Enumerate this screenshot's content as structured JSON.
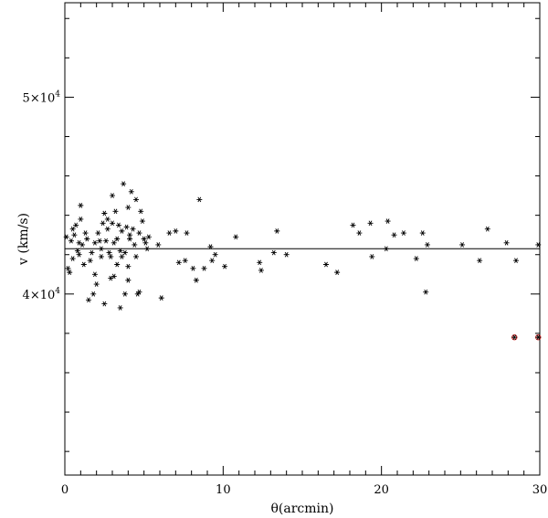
{
  "chart_data": {
    "type": "scatter",
    "xlabel": "θ(arcmin)",
    "ylabel": "v (km/s)",
    "xlim": [
      0,
      30
    ],
    "ylim": [
      30800,
      54800
    ],
    "x_ticks": [
      0,
      10,
      20,
      30
    ],
    "x_tick_labels": [
      "0",
      "10",
      "20",
      "30"
    ],
    "y_ticks": [
      40000,
      50000
    ],
    "y_tick_labels": [
      {
        "mant": "4×10",
        "exp": "4"
      },
      {
        "mant": "5×10",
        "exp": "4"
      }
    ],
    "reference_line": 42300,
    "grid": false,
    "marker_color": "#000000",
    "highlight_color": "#cc2222",
    "series": [
      {
        "marker": "star",
        "points": [
          [
            0.1,
            42900
          ],
          [
            0.2,
            41300
          ],
          [
            0.3,
            41100
          ],
          [
            0.4,
            42700
          ],
          [
            0.5,
            41800
          ],
          [
            0.5,
            43300
          ],
          [
            0.6,
            43000
          ],
          [
            0.7,
            43500
          ],
          [
            0.8,
            42200
          ],
          [
            0.9,
            42600
          ],
          [
            0.9,
            42000
          ],
          [
            1.0,
            44500
          ],
          [
            1.0,
            43800
          ],
          [
            1.1,
            42500
          ],
          [
            1.2,
            41500
          ],
          [
            1.3,
            43100
          ],
          [
            1.4,
            42800
          ],
          [
            1.5,
            39700
          ],
          [
            1.6,
            41700
          ],
          [
            1.7,
            42100
          ],
          [
            1.8,
            40000
          ],
          [
            1.9,
            42600
          ],
          [
            1.9,
            41000
          ],
          [
            2.0,
            40500
          ],
          [
            2.1,
            43100
          ],
          [
            2.2,
            42700
          ],
          [
            2.3,
            42300
          ],
          [
            2.3,
            41900
          ],
          [
            2.4,
            43600
          ],
          [
            2.5,
            44100
          ],
          [
            2.5,
            39500
          ],
          [
            2.6,
            42700
          ],
          [
            2.7,
            43800
          ],
          [
            2.7,
            43300
          ],
          [
            2.8,
            42100
          ],
          [
            2.9,
            40800
          ],
          [
            2.9,
            41900
          ],
          [
            3.0,
            45000
          ],
          [
            3.0,
            43600
          ],
          [
            3.1,
            42600
          ],
          [
            3.1,
            40900
          ],
          [
            3.2,
            44200
          ],
          [
            3.3,
            42800
          ],
          [
            3.3,
            41500
          ],
          [
            3.4,
            43500
          ],
          [
            3.5,
            42200
          ],
          [
            3.5,
            39300
          ],
          [
            3.6,
            41900
          ],
          [
            3.6,
            43200
          ],
          [
            3.7,
            45600
          ],
          [
            3.8,
            42100
          ],
          [
            3.8,
            40000
          ],
          [
            3.9,
            43400
          ],
          [
            4.0,
            44400
          ],
          [
            4.0,
            41400
          ],
          [
            4.0,
            40700
          ],
          [
            4.1,
            43000
          ],
          [
            4.1,
            42800
          ],
          [
            4.2,
            45200
          ],
          [
            4.3,
            43300
          ],
          [
            4.4,
            42500
          ],
          [
            4.5,
            44800
          ],
          [
            4.5,
            41900
          ],
          [
            4.6,
            40000
          ],
          [
            4.7,
            43100
          ],
          [
            4.7,
            40100
          ],
          [
            4.8,
            44200
          ],
          [
            4.9,
            43700
          ],
          [
            5.0,
            42800
          ],
          [
            5.1,
            42600
          ],
          [
            5.2,
            42300
          ],
          [
            5.3,
            42900
          ],
          [
            5.9,
            42500
          ],
          [
            6.1,
            39800
          ],
          [
            6.6,
            43100
          ],
          [
            7.0,
            43200
          ],
          [
            7.2,
            41600
          ],
          [
            7.6,
            41700
          ],
          [
            7.7,
            43100
          ],
          [
            8.1,
            41300
          ],
          [
            8.3,
            40700
          ],
          [
            8.5,
            44800
          ],
          [
            8.8,
            41300
          ],
          [
            9.2,
            42400
          ],
          [
            9.3,
            41700
          ],
          [
            9.5,
            42000
          ],
          [
            10.1,
            41400
          ],
          [
            10.8,
            42900
          ],
          [
            12.3,
            41600
          ],
          [
            12.4,
            41200
          ],
          [
            13.2,
            42100
          ],
          [
            13.4,
            43200
          ],
          [
            14.0,
            42000
          ],
          [
            16.5,
            41500
          ],
          [
            17.2,
            41100
          ],
          [
            18.2,
            43500
          ],
          [
            18.6,
            43100
          ],
          [
            19.3,
            43600
          ],
          [
            19.4,
            41900
          ],
          [
            20.3,
            42300
          ],
          [
            20.4,
            43700
          ],
          [
            20.8,
            43000
          ],
          [
            21.4,
            43100
          ],
          [
            22.2,
            41800
          ],
          [
            22.6,
            43100
          ],
          [
            22.9,
            42500
          ],
          [
            22.8,
            40100
          ],
          [
            25.1,
            42500
          ],
          [
            26.2,
            41700
          ],
          [
            26.7,
            43300
          ],
          [
            27.9,
            42600
          ],
          [
            28.5,
            41700
          ],
          [
            29.9,
            42500
          ]
        ]
      },
      {
        "marker": "star",
        "highlight": true,
        "points": [
          [
            28.4,
            37800
          ],
          [
            29.9,
            37800
          ]
        ]
      }
    ]
  }
}
